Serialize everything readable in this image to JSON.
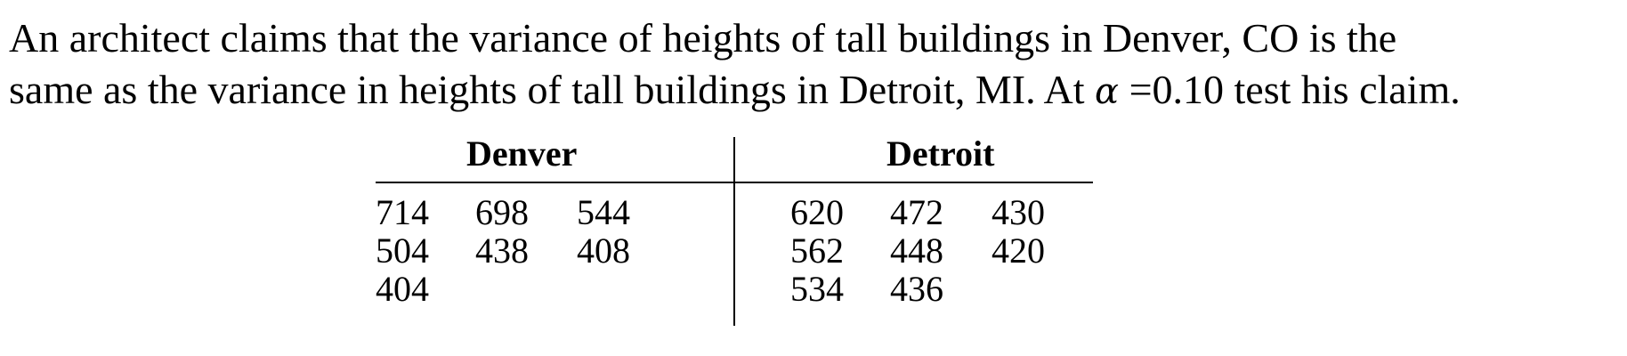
{
  "problem": {
    "line1": "An architect claims that the variance of heights of tall buildings in Denver, CO is the",
    "line2_prefix": "same as the variance in heights of tall buildings in Detroit, MI. At ",
    "alpha_symbol": "α",
    "line2_suffix": " =0.10 test his claim."
  },
  "table": {
    "headers": {
      "denver": "Denver",
      "detroit": "Detroit"
    },
    "denver_rows": [
      [
        "714",
        "698",
        "544"
      ],
      [
        "504",
        "438",
        "408"
      ],
      [
        "404"
      ]
    ],
    "detroit_rows": [
      [
        "620",
        "472",
        "430"
      ],
      [
        "562",
        "448",
        "420"
      ],
      [
        "534",
        "436"
      ]
    ]
  }
}
